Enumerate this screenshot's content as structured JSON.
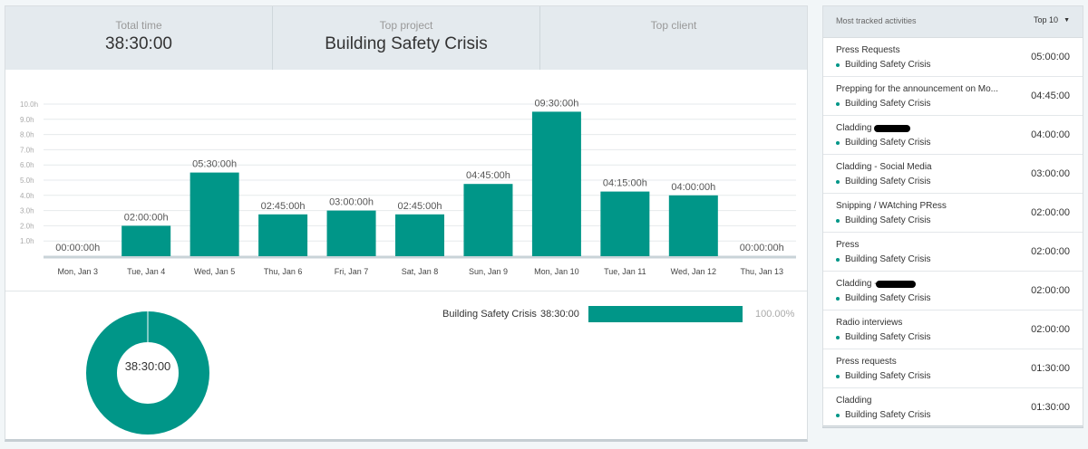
{
  "stats": {
    "total_time_label": "Total time",
    "total_time_value": "38:30:00",
    "top_project_label": "Top project",
    "top_project_value": "Building Safety Crisis",
    "top_client_label": "Top client",
    "top_client_value": ""
  },
  "chart_data": {
    "type": "bar",
    "categories": [
      "Mon, Jan 3",
      "Tue, Jan 4",
      "Wed, Jan 5",
      "Thu, Jan 6",
      "Fri, Jan 7",
      "Sat, Jan 8",
      "Sun, Jan 9",
      "Mon, Jan 10",
      "Tue, Jan 11",
      "Wed, Jan 12",
      "Thu, Jan 13"
    ],
    "values": [
      0,
      2,
      5.5,
      2.75,
      3,
      2.75,
      4.75,
      9.5,
      4.25,
      4,
      0
    ],
    "data_labels": [
      "00:00:00h",
      "02:00:00h",
      "05:30:00h",
      "02:45:00h",
      "03:00:00h",
      "02:45:00h",
      "04:45:00h",
      "09:30:00h",
      "04:15:00h",
      "04:00:00h",
      "00:00:00h"
    ],
    "yticks": [
      "1.0h",
      "2.0h",
      "3.0h",
      "4.0h",
      "5.0h",
      "6.0h",
      "7.0h",
      "8.0h",
      "9.0h",
      "10.0h"
    ],
    "ylim": [
      0,
      10
    ],
    "grid": true,
    "bar_color": "#009688"
  },
  "donut": {
    "center_label": "38:30:00",
    "color": "#009688"
  },
  "project_breakdown": [
    {
      "name": "Building Safety Crisis",
      "time": "38:30:00",
      "percent": "100.00%",
      "fraction": 1.0
    }
  ],
  "sidebar": {
    "title": "Most tracked activities",
    "dropdown_label": "Top 10",
    "activities": [
      {
        "name": "Press Requests",
        "project": "Building Safety Crisis",
        "time": "05:00:00"
      },
      {
        "name": "Prepping for the announcement on Mo...",
        "project": "Building Safety Crisis",
        "time": "04:45:00"
      },
      {
        "name": "Cladding -",
        "project": "Building Safety Crisis",
        "time": "04:00:00"
      },
      {
        "name": "Cladding - Social Media",
        "project": "Building Safety Crisis",
        "time": "03:00:00"
      },
      {
        "name": "Snipping / WAtching PRess",
        "project": "Building Safety Crisis",
        "time": "02:00:00"
      },
      {
        "name": "Press",
        "project": "Building Safety Crisis",
        "time": "02:00:00"
      },
      {
        "name": "Cladding -",
        "project": "Building Safety Crisis",
        "time": "02:00:00"
      },
      {
        "name": "Radio interviews",
        "project": "Building Safety Crisis",
        "time": "02:00:00"
      },
      {
        "name": "Press requests",
        "project": "Building Safety Crisis",
        "time": "01:30:00"
      },
      {
        "name": "Cladding",
        "project": "Building Safety Crisis",
        "time": "01:30:00"
      }
    ]
  }
}
